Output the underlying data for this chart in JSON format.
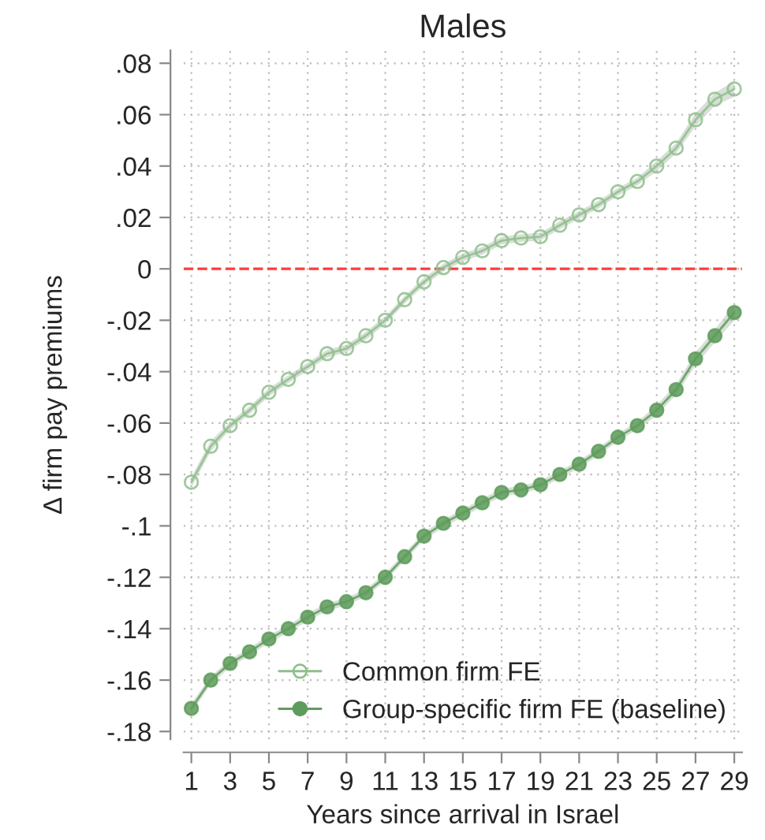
{
  "chart_data": {
    "type": "line",
    "title": "Males",
    "xlabel": "Years since arrival in Israel",
    "ylabel": "Δ firm pay premiums",
    "x": [
      1,
      2,
      3,
      4,
      5,
      6,
      7,
      8,
      9,
      10,
      11,
      12,
      13,
      14,
      15,
      16,
      17,
      18,
      19,
      20,
      21,
      22,
      23,
      24,
      25,
      26,
      27,
      28,
      29
    ],
    "series": [
      {
        "name": "Common firm FE",
        "color": "#8fbf8c",
        "values": [
          -0.083,
          -0.069,
          -0.061,
          -0.055,
          -0.048,
          -0.043,
          -0.038,
          -0.033,
          -0.031,
          -0.026,
          -0.02,
          -0.012,
          -0.005,
          0.0005,
          0.0045,
          0.007,
          0.011,
          0.012,
          0.0125,
          0.017,
          0.021,
          0.025,
          0.03,
          0.034,
          0.04,
          0.047,
          0.058,
          0.066,
          0.07
        ],
        "lower": [
          -0.085,
          -0.071,
          -0.0625,
          -0.0565,
          -0.0495,
          -0.0445,
          -0.0395,
          -0.0345,
          -0.0325,
          -0.0275,
          -0.0215,
          -0.0135,
          -0.0065,
          -0.001,
          0.003,
          0.0055,
          0.0095,
          0.0105,
          0.011,
          0.0155,
          0.0195,
          0.0235,
          0.0285,
          0.0325,
          0.038,
          0.045,
          0.0555,
          0.0635,
          0.067
        ],
        "upper": [
          -0.081,
          -0.067,
          -0.0595,
          -0.0535,
          -0.0465,
          -0.0415,
          -0.0365,
          -0.0315,
          -0.0295,
          -0.0245,
          -0.0185,
          -0.0105,
          -0.0035,
          0.002,
          0.006,
          0.0085,
          0.0125,
          0.0135,
          0.014,
          0.0185,
          0.0225,
          0.0265,
          0.0315,
          0.0355,
          0.042,
          0.049,
          0.0605,
          0.0685,
          0.073
        ]
      },
      {
        "name": "Group-specific firm FE (baseline)",
        "color": "#5e9c5c",
        "values": [
          -0.171,
          -0.16,
          -0.1535,
          -0.149,
          -0.144,
          -0.14,
          -0.1355,
          -0.1315,
          -0.1295,
          -0.126,
          -0.12,
          -0.112,
          -0.104,
          -0.099,
          -0.095,
          -0.091,
          -0.087,
          -0.086,
          -0.084,
          -0.08,
          -0.076,
          -0.071,
          -0.0655,
          -0.061,
          -0.055,
          -0.047,
          -0.035,
          -0.026,
          -0.017
        ],
        "lower": [
          -0.173,
          -0.1615,
          -0.155,
          -0.1505,
          -0.1455,
          -0.1415,
          -0.137,
          -0.133,
          -0.131,
          -0.1275,
          -0.1215,
          -0.1135,
          -0.1055,
          -0.1005,
          -0.0965,
          -0.0925,
          -0.0885,
          -0.0875,
          -0.0855,
          -0.0815,
          -0.0775,
          -0.0725,
          -0.067,
          -0.0625,
          -0.057,
          -0.049,
          -0.0375,
          -0.0285,
          -0.02
        ],
        "upper": [
          -0.169,
          -0.1585,
          -0.152,
          -0.1475,
          -0.1425,
          -0.1385,
          -0.134,
          -0.13,
          -0.128,
          -0.1245,
          -0.1185,
          -0.1105,
          -0.1025,
          -0.0975,
          -0.0935,
          -0.0895,
          -0.0855,
          -0.0845,
          -0.0825,
          -0.0785,
          -0.0745,
          -0.0695,
          -0.064,
          -0.0595,
          -0.053,
          -0.045,
          -0.0325,
          -0.0235,
          -0.014
        ]
      }
    ],
    "xlim": [
      0.6,
      29.4
    ],
    "xticks": [
      1,
      3,
      5,
      7,
      9,
      11,
      13,
      15,
      17,
      19,
      21,
      23,
      25,
      27,
      29
    ],
    "ylim": [
      -0.183,
      0.085
    ],
    "yticks": [
      {
        "value": 0.08,
        "label": ".08"
      },
      {
        "value": 0.06,
        "label": ".06"
      },
      {
        "value": 0.04,
        "label": ".04"
      },
      {
        "value": 0.02,
        "label": ".02"
      },
      0,
      {
        "value": -0.02,
        "label": "-.02"
      },
      {
        "value": -0.04,
        "label": "-.04"
      },
      {
        "value": -0.06,
        "label": "-.06"
      },
      {
        "value": -0.08,
        "label": "-.08"
      },
      {
        "value": -0.1,
        "label": "-.1"
      },
      {
        "value": -0.12,
        "label": "-.12"
      },
      {
        "value": -0.14,
        "label": "-.14"
      },
      {
        "value": -0.16,
        "label": "-.16"
      },
      {
        "value": -0.18,
        "label": "-.18"
      }
    ],
    "ref_lines": [
      {
        "axis": "y",
        "value": 0,
        "color": "#ff3b3b",
        "line_style": "dashed"
      }
    ],
    "grid": true,
    "legend": "lower right",
    "marker": "circle",
    "line_style": "solid"
  }
}
